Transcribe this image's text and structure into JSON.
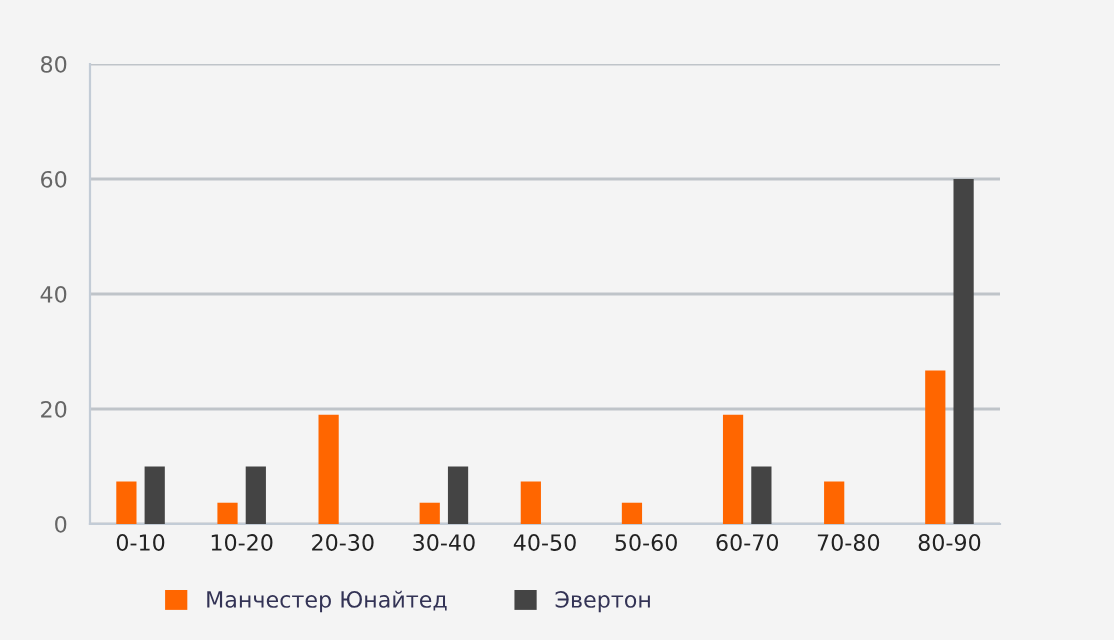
{
  "chart_data": {
    "type": "bar",
    "categories": [
      "0-10",
      "10-20",
      "20-30",
      "30-40",
      "40-50",
      "50-60",
      "60-70",
      "70-80",
      "80-90"
    ],
    "series": [
      {
        "name": "Манчестер Юнайтед",
        "color": "#ff6600",
        "values": [
          7.4,
          3.7,
          19,
          3.7,
          7.4,
          3.7,
          19,
          7.4,
          26.7
        ]
      },
      {
        "name": "Эвертон",
        "color": "#444444",
        "values": [
          10,
          10,
          0,
          10,
          0,
          0,
          10,
          0,
          60
        ]
      }
    ],
    "ylim": [
      0,
      80
    ],
    "yticks": [
      0,
      20,
      40,
      60,
      80
    ],
    "grid": "y",
    "legend": "bottom"
  }
}
